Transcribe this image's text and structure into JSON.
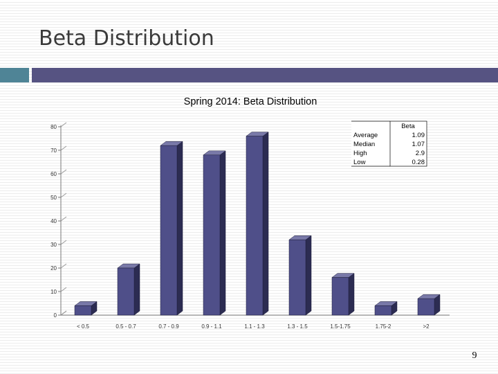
{
  "slide": {
    "title": "Beta Distribution",
    "page_number": "9"
  },
  "colors": {
    "bar_front": "#4f4f89",
    "bar_side": "#2c2c52",
    "bar_top": "#7979a8",
    "accent_teal": "#4f8496",
    "accent_purple": "#565382"
  },
  "chart_data": {
    "type": "bar",
    "title": "Spring 2014: Beta Distribution",
    "categories": [
      "< 0.5",
      "0.5 - 0.7",
      "0.7 - 0.9",
      "0.9 - 1.1",
      "1.1 - 1.3",
      "1.3 - 1.5",
      "1.5-1.75",
      "1.75-2",
      ">2"
    ],
    "values": [
      4,
      20,
      72,
      68,
      76,
      32,
      16,
      4,
      7
    ],
    "ylim": [
      0,
      80
    ],
    "yticks": [
      0,
      10,
      20,
      30,
      40,
      50,
      60,
      70,
      80
    ],
    "grid": false,
    "style": "3d-column",
    "stats_table": {
      "header": "Beta",
      "rows": [
        {
          "label": "Average",
          "value": "1.09"
        },
        {
          "label": "Median",
          "value": "1.07"
        },
        {
          "label": "High",
          "value": "2.9"
        },
        {
          "label": "Low",
          "value": "0.28"
        }
      ]
    }
  }
}
